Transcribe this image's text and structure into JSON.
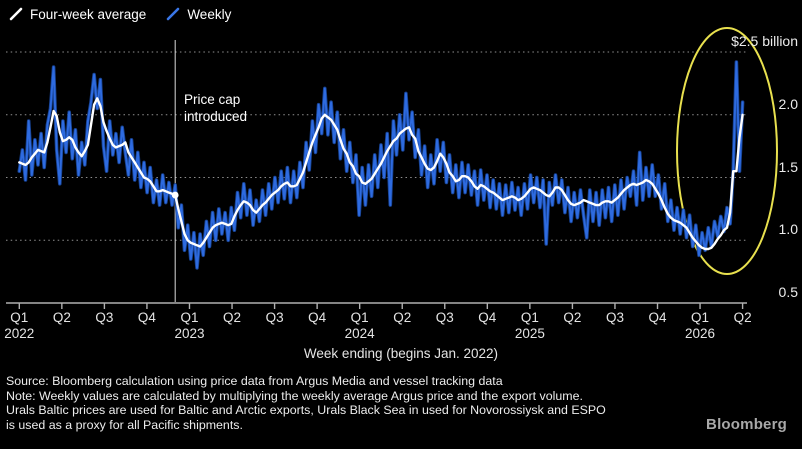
{
  "legend_note": "two line series",
  "annotation": {
    "lines": [
      "Price cap",
      "introduced"
    ]
  },
  "footer": {
    "lines": [
      "Source: Bloomberg calculation using price data from Argus Media and vessel tracking data",
      "Note: Weekly values are calculated by multiplying the weekly average Argus price and the export volume.",
      "Urals Baltic prices are used for Baltic and Arctic exports, Urals Black Sea in used for Novorossiysk and ESPO",
      "is used as a proxy for all Pacific shipments."
    ]
  },
  "logo": "Bloomberg",
  "colors": {
    "background": "#000000",
    "average_line": "#ffffff",
    "weekly_line": "#2e6be0",
    "weekly_glow": "#17418f",
    "grid": "#8f8f8f",
    "axis": "#b0b0b0",
    "highlight_ellipse": "#e8e04e",
    "event_line": "#dcdcdc"
  },
  "chart_data": {
    "type": "line",
    "title": "",
    "xlabel": "Week ending (begins Jan. 2022)",
    "ylabel": "$ billion",
    "x_unit": "week index starting Jan. 2022 (weekly cadence)",
    "ylim": [
      0.5,
      2.5
    ],
    "grid": "horizontal dotted",
    "legend_position": "top-left",
    "y_ticks": [
      {
        "value": 2.5,
        "label": "$2.5 billion"
      },
      {
        "value": 2.0,
        "label": "2.0"
      },
      {
        "value": 1.5,
        "label": "1.5"
      },
      {
        "value": 1.0,
        "label": "1.0"
      },
      {
        "value": 0.5,
        "label": "0.5"
      }
    ],
    "x_ticks": [
      {
        "quarter": "Q1",
        "year": "2022"
      },
      {
        "quarter": "Q2"
      },
      {
        "quarter": "Q3"
      },
      {
        "quarter": "Q4"
      },
      {
        "quarter": "Q1",
        "year": "2023"
      },
      {
        "quarter": "Q2"
      },
      {
        "quarter": "Q3"
      },
      {
        "quarter": "Q4"
      },
      {
        "quarter": "Q1",
        "year": "2024"
      },
      {
        "quarter": "Q2"
      },
      {
        "quarter": "Q3"
      },
      {
        "quarter": "Q4"
      },
      {
        "quarter": "Q1",
        "year": "2025"
      },
      {
        "quarter": "Q2"
      },
      {
        "quarter": "Q3"
      },
      {
        "quarter": "Q4"
      },
      {
        "quarter": "Q1",
        "year": "2026"
      },
      {
        "quarter": "Q2"
      }
    ],
    "annotations": [
      {
        "type": "vertical-line",
        "lines": [
          "Price cap",
          "introduced"
        ],
        "week": 50,
        "marker": "dot-on-average-line",
        "marker_value": 1.36
      },
      {
        "type": "ellipse-highlight",
        "color": "#e8e04e",
        "week_range": [
          211,
          233
        ],
        "value_range": [
          0.7,
          2.5
        ],
        "meaning": "spike in early-to-mid 2026"
      }
    ],
    "series": [
      {
        "name": "Four-week average",
        "color": "#ffffff",
        "values": [
          1.62,
          1.61,
          1.6,
          1.62,
          1.66,
          1.69,
          1.72,
          1.71,
          1.7,
          1.78,
          1.9,
          2.03,
          1.99,
          1.86,
          1.79,
          1.8,
          1.82,
          1.8,
          1.74,
          1.7,
          1.67,
          1.71,
          1.76,
          1.92,
          2.08,
          2.13,
          2.07,
          1.94,
          1.87,
          1.81,
          1.76,
          1.74,
          1.75,
          1.76,
          1.78,
          1.7,
          1.66,
          1.62,
          1.58,
          1.54,
          1.5,
          1.49,
          1.47,
          1.43,
          1.39,
          1.39,
          1.4,
          1.39,
          1.38,
          1.37,
          1.36,
          1.25,
          1.15,
          1.05,
          1.0,
          0.98,
          0.97,
          0.96,
          0.95,
          0.98,
          1.02,
          1.06,
          1.1,
          1.12,
          1.13,
          1.14,
          1.13,
          1.12,
          1.13,
          1.19,
          1.24,
          1.28,
          1.31,
          1.3,
          1.28,
          1.24,
          1.22,
          1.25,
          1.28,
          1.3,
          1.33,
          1.36,
          1.38,
          1.4,
          1.43,
          1.45,
          1.46,
          1.43,
          1.43,
          1.44,
          1.49,
          1.54,
          1.62,
          1.7,
          1.78,
          1.84,
          1.9,
          1.97,
          2.0,
          1.98,
          1.96,
          1.92,
          1.88,
          1.8,
          1.73,
          1.69,
          1.62,
          1.59,
          1.53,
          1.51,
          1.46,
          1.45,
          1.47,
          1.49,
          1.53,
          1.57,
          1.61,
          1.66,
          1.71,
          1.75,
          1.79,
          1.81,
          1.85,
          1.87,
          1.89,
          1.9,
          1.84,
          1.81,
          1.71,
          1.66,
          1.61,
          1.57,
          1.56,
          1.58,
          1.63,
          1.69,
          1.66,
          1.61,
          1.54,
          1.51,
          1.47,
          1.48,
          1.51,
          1.51,
          1.5,
          1.47,
          1.43,
          1.41,
          1.44,
          1.43,
          1.41,
          1.39,
          1.38,
          1.36,
          1.34,
          1.32,
          1.33,
          1.34,
          1.35,
          1.34,
          1.32,
          1.33,
          1.35,
          1.38,
          1.41,
          1.42,
          1.41,
          1.4,
          1.38,
          1.36,
          1.35,
          1.38,
          1.42,
          1.42,
          1.4,
          1.36,
          1.32,
          1.29,
          1.28,
          1.29,
          1.3,
          1.32,
          1.31,
          1.3,
          1.29,
          1.28,
          1.28,
          1.3,
          1.31,
          1.31,
          1.3,
          1.32,
          1.34,
          1.37,
          1.4,
          1.42,
          1.44,
          1.45,
          1.44,
          1.45,
          1.46,
          1.48,
          1.47,
          1.45,
          1.41,
          1.37,
          1.32,
          1.26,
          1.21,
          1.18,
          1.16,
          1.15,
          1.14,
          1.12,
          1.1,
          1.06,
          1.02,
          0.99,
          0.96,
          0.94,
          0.93,
          0.93,
          0.94,
          0.97,
          1.01,
          1.04,
          1.08,
          1.1,
          1.22,
          1.55,
          1.55,
          1.82,
          2.0
        ]
      },
      {
        "name": "Weekly",
        "color": "#2e6be0",
        "values": [
          1.55,
          1.72,
          1.48,
          1.95,
          1.52,
          1.8,
          1.6,
          1.85,
          1.58,
          1.92,
          2.05,
          2.38,
          1.72,
          1.45,
          1.95,
          1.7,
          2.02,
          1.65,
          1.88,
          1.52,
          1.78,
          1.6,
          1.95,
          2.1,
          2.32,
          2.05,
          2.28,
          1.75,
          1.55,
          1.95,
          1.68,
          1.85,
          1.62,
          1.9,
          1.7,
          1.52,
          1.8,
          1.48,
          1.7,
          1.42,
          1.62,
          1.38,
          1.58,
          1.3,
          1.48,
          1.28,
          1.52,
          1.3,
          1.46,
          1.28,
          1.44,
          1.1,
          1.28,
          0.92,
          1.12,
          0.85,
          1.06,
          0.78,
          1.05,
          0.88,
          1.15,
          0.95,
          1.22,
          1.0,
          1.25,
          1.05,
          1.22,
          1.0,
          1.26,
          1.08,
          1.38,
          1.18,
          1.45,
          1.2,
          1.4,
          1.12,
          1.32,
          1.15,
          1.4,
          1.2,
          1.45,
          1.25,
          1.5,
          1.3,
          1.55,
          1.33,
          1.58,
          1.3,
          1.55,
          1.34,
          1.62,
          1.42,
          1.78,
          1.56,
          1.95,
          1.7,
          2.08,
          1.85,
          2.21,
          1.84,
          2.1,
          1.78,
          2.02,
          1.65,
          1.88,
          1.55,
          1.78,
          1.46,
          1.68,
          1.2,
          1.58,
          1.28,
          1.6,
          1.35,
          1.68,
          1.42,
          1.76,
          1.5,
          1.85,
          1.28,
          1.95,
          1.68,
          2.0,
          1.72,
          2.17,
          1.8,
          2.02,
          1.66,
          1.88,
          1.52,
          1.75,
          1.42,
          1.68,
          1.45,
          1.8,
          1.55,
          1.78,
          1.46,
          1.68,
          1.38,
          1.6,
          1.34,
          1.62,
          1.38,
          1.6,
          1.36,
          1.55,
          1.28,
          1.56,
          1.32,
          1.52,
          1.26,
          1.48,
          1.25,
          1.45,
          1.2,
          1.44,
          1.22,
          1.46,
          1.24,
          1.42,
          1.2,
          1.45,
          1.25,
          1.52,
          1.3,
          1.5,
          1.26,
          1.48,
          0.97,
          1.46,
          1.28,
          1.52,
          1.3,
          1.48,
          1.22,
          1.42,
          1.15,
          1.38,
          1.18,
          1.4,
          1.2,
          1.02,
          1.4,
          1.15,
          1.38,
          1.12,
          1.4,
          1.18,
          1.42,
          1.15,
          1.44,
          1.2,
          1.48,
          1.25,
          1.5,
          1.35,
          1.55,
          1.28,
          1.7,
          1.32,
          1.58,
          1.35,
          1.6,
          1.35,
          1.52,
          1.25,
          1.45,
          1.15,
          1.32,
          1.08,
          1.26,
          1.05,
          1.24,
          1.02,
          1.2,
          0.95,
          1.12,
          0.88,
          1.06,
          0.92,
          1.1,
          0.95,
          1.15,
          1.03,
          1.19,
          1.07,
          1.26,
          1.13,
          1.55,
          2.42,
          1.55,
          2.1
        ]
      }
    ]
  }
}
